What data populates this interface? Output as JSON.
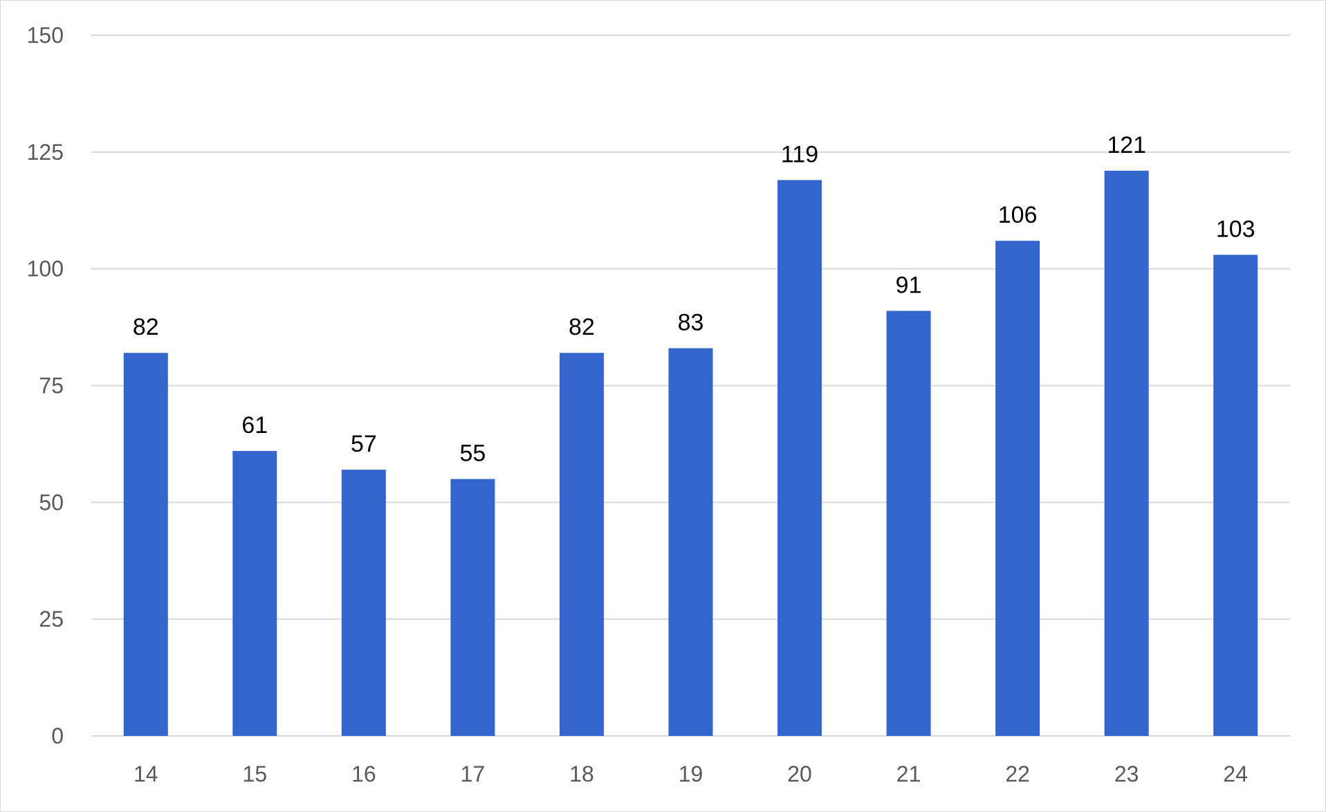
{
  "chart_data": {
    "type": "bar",
    "title": "",
    "xlabel": "",
    "ylabel": "",
    "categories": [
      "14",
      "15",
      "16",
      "17",
      "18",
      "19",
      "20",
      "21",
      "22",
      "23",
      "24"
    ],
    "values": [
      82,
      61,
      57,
      55,
      82,
      83,
      119,
      91,
      106,
      121,
      103
    ],
    "data_labels": [
      "82",
      "61",
      "57",
      "55",
      "82",
      "83",
      "119",
      "91",
      "106",
      "121",
      "103"
    ],
    "ylim": [
      0,
      150
    ],
    "yticks": [
      0,
      25,
      50,
      75,
      100,
      125,
      150
    ],
    "ytick_labels": [
      "0",
      "25",
      "50",
      "75",
      "100",
      "125",
      "150"
    ],
    "grid": true,
    "legend": "none",
    "colors": {
      "bar": "#3366cc",
      "grid": "#d9d9d9",
      "tick_text": "#595959",
      "label_text": "#000000"
    }
  }
}
